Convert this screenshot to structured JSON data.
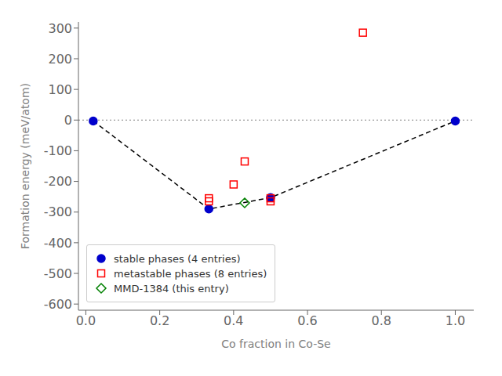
{
  "chart_data": {
    "type": "scatter",
    "xlabel": "Co fraction in Co-Se",
    "ylabel": "Formation energy (meV/atom)",
    "xlim": [
      -0.02,
      1.05
    ],
    "ylim": [
      -620,
      320
    ],
    "xticks": [
      {
        "value": 0.0,
        "label": "0.0"
      },
      0.2,
      0.4,
      0.6,
      0.8,
      {
        "value": 1.0,
        "label": "1.0"
      }
    ],
    "yticks": [
      -600,
      -500,
      -400,
      -300,
      -200,
      -100,
      0,
      100,
      200,
      300
    ],
    "grid": false,
    "legend": "lower left",
    "series": [
      {
        "type": "hline",
        "color": "gray",
        "line_style": "dotted",
        "values": [
          0.0
        ]
      },
      {
        "type": "line",
        "color": "black",
        "line_style": "dashed",
        "x": [
          0.02,
          0.333,
          0.5,
          1.0
        ],
        "values": [
          -3.0,
          -290.0,
          -253.0,
          -3.0
        ]
      },
      {
        "type": "scatter",
        "name": "stable phases (4 entries)",
        "color": "#0000cc",
        "marker": "circle",
        "x": [
          0.02,
          0.333,
          0.5,
          1.0
        ],
        "values": [
          -3.0,
          -290.0,
          -253.0,
          -3.0
        ]
      },
      {
        "type": "scatter",
        "name": "metastable phases (8 entries)",
        "color": "red",
        "marker": "square_open",
        "x": [
          0.333,
          0.333,
          0.4,
          0.43,
          0.5,
          0.5,
          0.75
        ],
        "values": [
          -255.0,
          -265.0,
          -210.0,
          -135.0,
          -265.0,
          -255.0,
          285.0
        ]
      },
      {
        "type": "scatter",
        "name": "MMD-1384 (this entry)",
        "color": "green",
        "marker": "diamond_open",
        "x": [
          0.43
        ],
        "values": [
          -270.0
        ]
      }
    ]
  }
}
